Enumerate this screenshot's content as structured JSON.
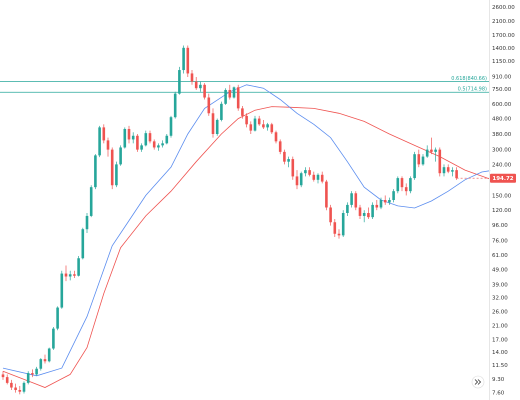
{
  "chart_data": {
    "type": "candlestick",
    "y_scale": "log",
    "ylim": [
      7.0,
      2800
    ],
    "y_ticks": [
      "2600.00",
      "2100.00",
      "1700.00",
      "1400.00",
      "1150.00",
      "910.00",
      "750.00",
      "600.00",
      "480.00",
      "380.00",
      "300.00",
      "240.00",
      "190.00",
      "150.00",
      "120.00",
      "96.00",
      "76.00",
      "61.00",
      "49.00",
      "39.00",
      "32.00",
      "26.00",
      "21.00",
      "17.00",
      "14.00",
      "11.50",
      "9.30",
      "7.60"
    ],
    "current_price": {
      "label": "194.72",
      "value": 194.72,
      "color": "#ef5350"
    },
    "fib_levels": [
      {
        "label": "0.618(840.66)",
        "value": 840.66
      },
      {
        "label": "0.5(714.98)",
        "value": 714.98
      }
    ],
    "colors": {
      "up": "#26a69a",
      "down": "#ef5350",
      "ma_fast": "#5b8def",
      "ma_slow": "#ef5350"
    },
    "candles": [
      [
        10.0,
        10.5,
        9.2,
        9.6
      ],
      [
        9.6,
        10.0,
        8.6,
        8.8
      ],
      [
        8.8,
        9.2,
        7.9,
        8.2
      ],
      [
        8.2,
        8.7,
        7.6,
        7.9
      ],
      [
        7.9,
        8.4,
        7.4,
        7.7
      ],
      [
        7.7,
        9.0,
        7.5,
        8.8
      ],
      [
        8.8,
        10.5,
        8.6,
        10.2
      ],
      [
        10.2,
        10.8,
        9.6,
        10.0
      ],
      [
        10.0,
        11.2,
        9.8,
        10.9
      ],
      [
        10.9,
        12.8,
        10.6,
        12.6
      ],
      [
        12.6,
        13.5,
        11.8,
        12.2
      ],
      [
        12.2,
        15.0,
        12.0,
        14.8
      ],
      [
        14.8,
        20.5,
        14.5,
        20.0
      ],
      [
        20.0,
        28.0,
        19.5,
        27.5
      ],
      [
        27.5,
        48.0,
        27.0,
        46.0
      ],
      [
        46.0,
        52.0,
        41.0,
        44.0
      ],
      [
        44.0,
        48.0,
        41.5,
        45.5
      ],
      [
        45.5,
        48.0,
        43.0,
        44.5
      ],
      [
        44.5,
        60.0,
        44.0,
        58.0
      ],
      [
        58.0,
        92.0,
        57.0,
        90.0
      ],
      [
        90.0,
        115.0,
        85.0,
        110.0
      ],
      [
        110.0,
        175.0,
        108.0,
        170.0
      ],
      [
        170.0,
        280.0,
        165.0,
        275.0
      ],
      [
        275.0,
        430.0,
        268.0,
        420.0
      ],
      [
        420.0,
        440.0,
        330.0,
        345.0
      ],
      [
        345.0,
        360.0,
        270.0,
        300.0
      ],
      [
        300.0,
        310.0,
        165.0,
        175.0
      ],
      [
        175.0,
        250.0,
        170.0,
        240.0
      ],
      [
        240.0,
        320.0,
        235.0,
        310.0
      ],
      [
        310.0,
        420.0,
        305.0,
        410.0
      ],
      [
        410.0,
        430.0,
        330.0,
        350.0
      ],
      [
        350.0,
        390.0,
        330.0,
        370.0
      ],
      [
        370.0,
        380.0,
        290.0,
        300.0
      ],
      [
        300.0,
        330.0,
        290.0,
        320.0
      ],
      [
        320.0,
        400.0,
        315.0,
        385.0
      ],
      [
        385.0,
        400.0,
        330.0,
        340.0
      ],
      [
        340.0,
        350.0,
        300.0,
        310.0
      ],
      [
        310.0,
        330.0,
        295.0,
        320.0
      ],
      [
        320.0,
        345.0,
        310.0,
        330.0
      ],
      [
        330.0,
        380.0,
        325.0,
        370.0
      ],
      [
        370.0,
        500.0,
        360.0,
        490.0
      ],
      [
        490.0,
        720.0,
        480.0,
        700.0
      ],
      [
        700.0,
        1050.0,
        690.0,
        1000.0
      ],
      [
        1000.0,
        1450.0,
        950.0,
        1400.0
      ],
      [
        1400.0,
        1450.0,
        900.0,
        950.0
      ],
      [
        950.0,
        1000.0,
        800.0,
        840.0
      ],
      [
        840.0,
        900.0,
        740.0,
        760.0
      ],
      [
        760.0,
        840.0,
        720.0,
        800.0
      ],
      [
        800.0,
        820.0,
        640.0,
        660.0
      ],
      [
        660.0,
        700.0,
        500.0,
        520.0
      ],
      [
        520.0,
        560.0,
        360.0,
        380.0
      ],
      [
        380.0,
        480.0,
        370.0,
        470.0
      ],
      [
        470.0,
        620.0,
        460.0,
        600.0
      ],
      [
        600.0,
        760.0,
        590.0,
        740.0
      ],
      [
        740.0,
        800.0,
        640.0,
        660.0
      ],
      [
        660.0,
        780.0,
        650.0,
        770.0
      ],
      [
        770.0,
        800.0,
        540.0,
        560.0
      ],
      [
        560.0,
        580.0,
        480.0,
        500.0
      ],
      [
        500.0,
        520.0,
        420.0,
        440.0
      ],
      [
        440.0,
        460.0,
        380.0,
        400.0
      ],
      [
        400.0,
        500.0,
        395.0,
        480.0
      ],
      [
        480.0,
        500.0,
        430.0,
        440.0
      ],
      [
        440.0,
        470.0,
        410.0,
        420.0
      ],
      [
        420.0,
        450.0,
        400.0,
        440.0
      ],
      [
        440.0,
        450.0,
        380.0,
        390.0
      ],
      [
        390.0,
        400.0,
        330.0,
        340.0
      ],
      [
        340.0,
        350.0,
        280.0,
        290.0
      ],
      [
        290.0,
        300.0,
        240.0,
        250.0
      ],
      [
        250.0,
        270.0,
        230.0,
        260.0
      ],
      [
        260.0,
        270.0,
        190.0,
        200.0
      ],
      [
        200.0,
        220.0,
        165.0,
        175.0
      ],
      [
        175.0,
        215.0,
        170.0,
        210.0
      ],
      [
        210.0,
        230.0,
        200.0,
        220.0
      ],
      [
        220.0,
        230.0,
        200.0,
        205.0
      ],
      [
        205.0,
        215.0,
        185.0,
        190.0
      ],
      [
        190.0,
        210.0,
        180.0,
        205.0
      ],
      [
        205.0,
        215.0,
        180.0,
        185.0
      ],
      [
        185.0,
        190.0,
        120.0,
        125.0
      ],
      [
        125.0,
        130.0,
        95.0,
        100.0
      ],
      [
        100.0,
        105.0,
        80.0,
        84.0
      ],
      [
        84.0,
        90.0,
        78.0,
        82.0
      ],
      [
        82.0,
        120.0,
        80.0,
        115.0
      ],
      [
        115.0,
        135.0,
        110.0,
        130.0
      ],
      [
        130.0,
        160.0,
        125.0,
        155.0
      ],
      [
        155.0,
        160.0,
        120.0,
        125.0
      ],
      [
        125.0,
        130.0,
        105.0,
        110.0
      ],
      [
        110.0,
        120.0,
        100.0,
        115.0
      ],
      [
        115.0,
        125.0,
        105.0,
        108.0
      ],
      [
        108.0,
        135.0,
        105.0,
        130.0
      ],
      [
        130.0,
        140.0,
        120.0,
        125.0
      ],
      [
        125.0,
        145.0,
        122.0,
        140.0
      ],
      [
        140.0,
        150.0,
        130.0,
        135.0
      ],
      [
        135.0,
        145.0,
        130.0,
        140.0
      ],
      [
        140.0,
        165.0,
        135.0,
        160.0
      ],
      [
        160.0,
        200.0,
        155.0,
        195.0
      ],
      [
        195.0,
        200.0,
        160.0,
        170.0
      ],
      [
        170.0,
        180.0,
        150.0,
        160.0
      ],
      [
        160.0,
        200.0,
        155.0,
        195.0
      ],
      [
        195.0,
        290.0,
        190.0,
        280.0
      ],
      [
        280.0,
        300.0,
        230.0,
        240.0
      ],
      [
        240.0,
        280.0,
        235.0,
        270.0
      ],
      [
        270.0,
        320.0,
        265.0,
        300.0
      ],
      [
        300.0,
        360.0,
        280.0,
        290.0
      ],
      [
        290.0,
        310.0,
        250.0,
        300.0
      ],
      [
        300.0,
        310.0,
        200.0,
        210.0
      ],
      [
        210.0,
        240.0,
        200.0,
        230.0
      ],
      [
        230.0,
        240.0,
        210.0,
        215.0
      ],
      [
        215.0,
        230.0,
        200.0,
        220.0
      ],
      [
        220.0,
        230.0,
        190.0,
        194.72
      ]
    ],
    "ma_fast": [
      [
        0,
        11.0
      ],
      [
        8,
        9.8
      ],
      [
        14,
        11.0
      ],
      [
        20,
        24.0
      ],
      [
        26,
        70.0
      ],
      [
        34,
        150.0
      ],
      [
        40,
        230.0
      ],
      [
        44,
        380.0
      ],
      [
        48,
        560.0
      ],
      [
        54,
        720.0
      ],
      [
        58,
        800.0
      ],
      [
        62,
        760.0
      ],
      [
        66,
        640.0
      ],
      [
        70,
        520.0
      ],
      [
        74,
        440.0
      ],
      [
        78,
        360.0
      ],
      [
        82,
        250.0
      ],
      [
        86,
        170.0
      ],
      [
        90,
        140.0
      ],
      [
        94,
        128.0
      ],
      [
        98,
        124.0
      ],
      [
        102,
        138.0
      ],
      [
        106,
        160.0
      ],
      [
        110,
        190.0
      ],
      [
        114,
        214.0
      ],
      [
        116,
        218.0
      ]
    ],
    "ma_slow": [
      [
        0,
        10.5
      ],
      [
        10,
        8.2
      ],
      [
        16,
        10.0
      ],
      [
        20,
        15.0
      ],
      [
        24,
        34.0
      ],
      [
        28,
        68.0
      ],
      [
        34,
        110.0
      ],
      [
        40,
        160.0
      ],
      [
        46,
        250.0
      ],
      [
        52,
        380.0
      ],
      [
        56,
        480.0
      ],
      [
        60,
        545.0
      ],
      [
        64,
        575.0
      ],
      [
        68,
        570.0
      ],
      [
        74,
        560.0
      ],
      [
        80,
        520.0
      ],
      [
        86,
        460.0
      ],
      [
        92,
        380.0
      ],
      [
        98,
        320.0
      ],
      [
        104,
        270.0
      ],
      [
        110,
        220.0
      ],
      [
        116,
        192.0
      ]
    ]
  }
}
